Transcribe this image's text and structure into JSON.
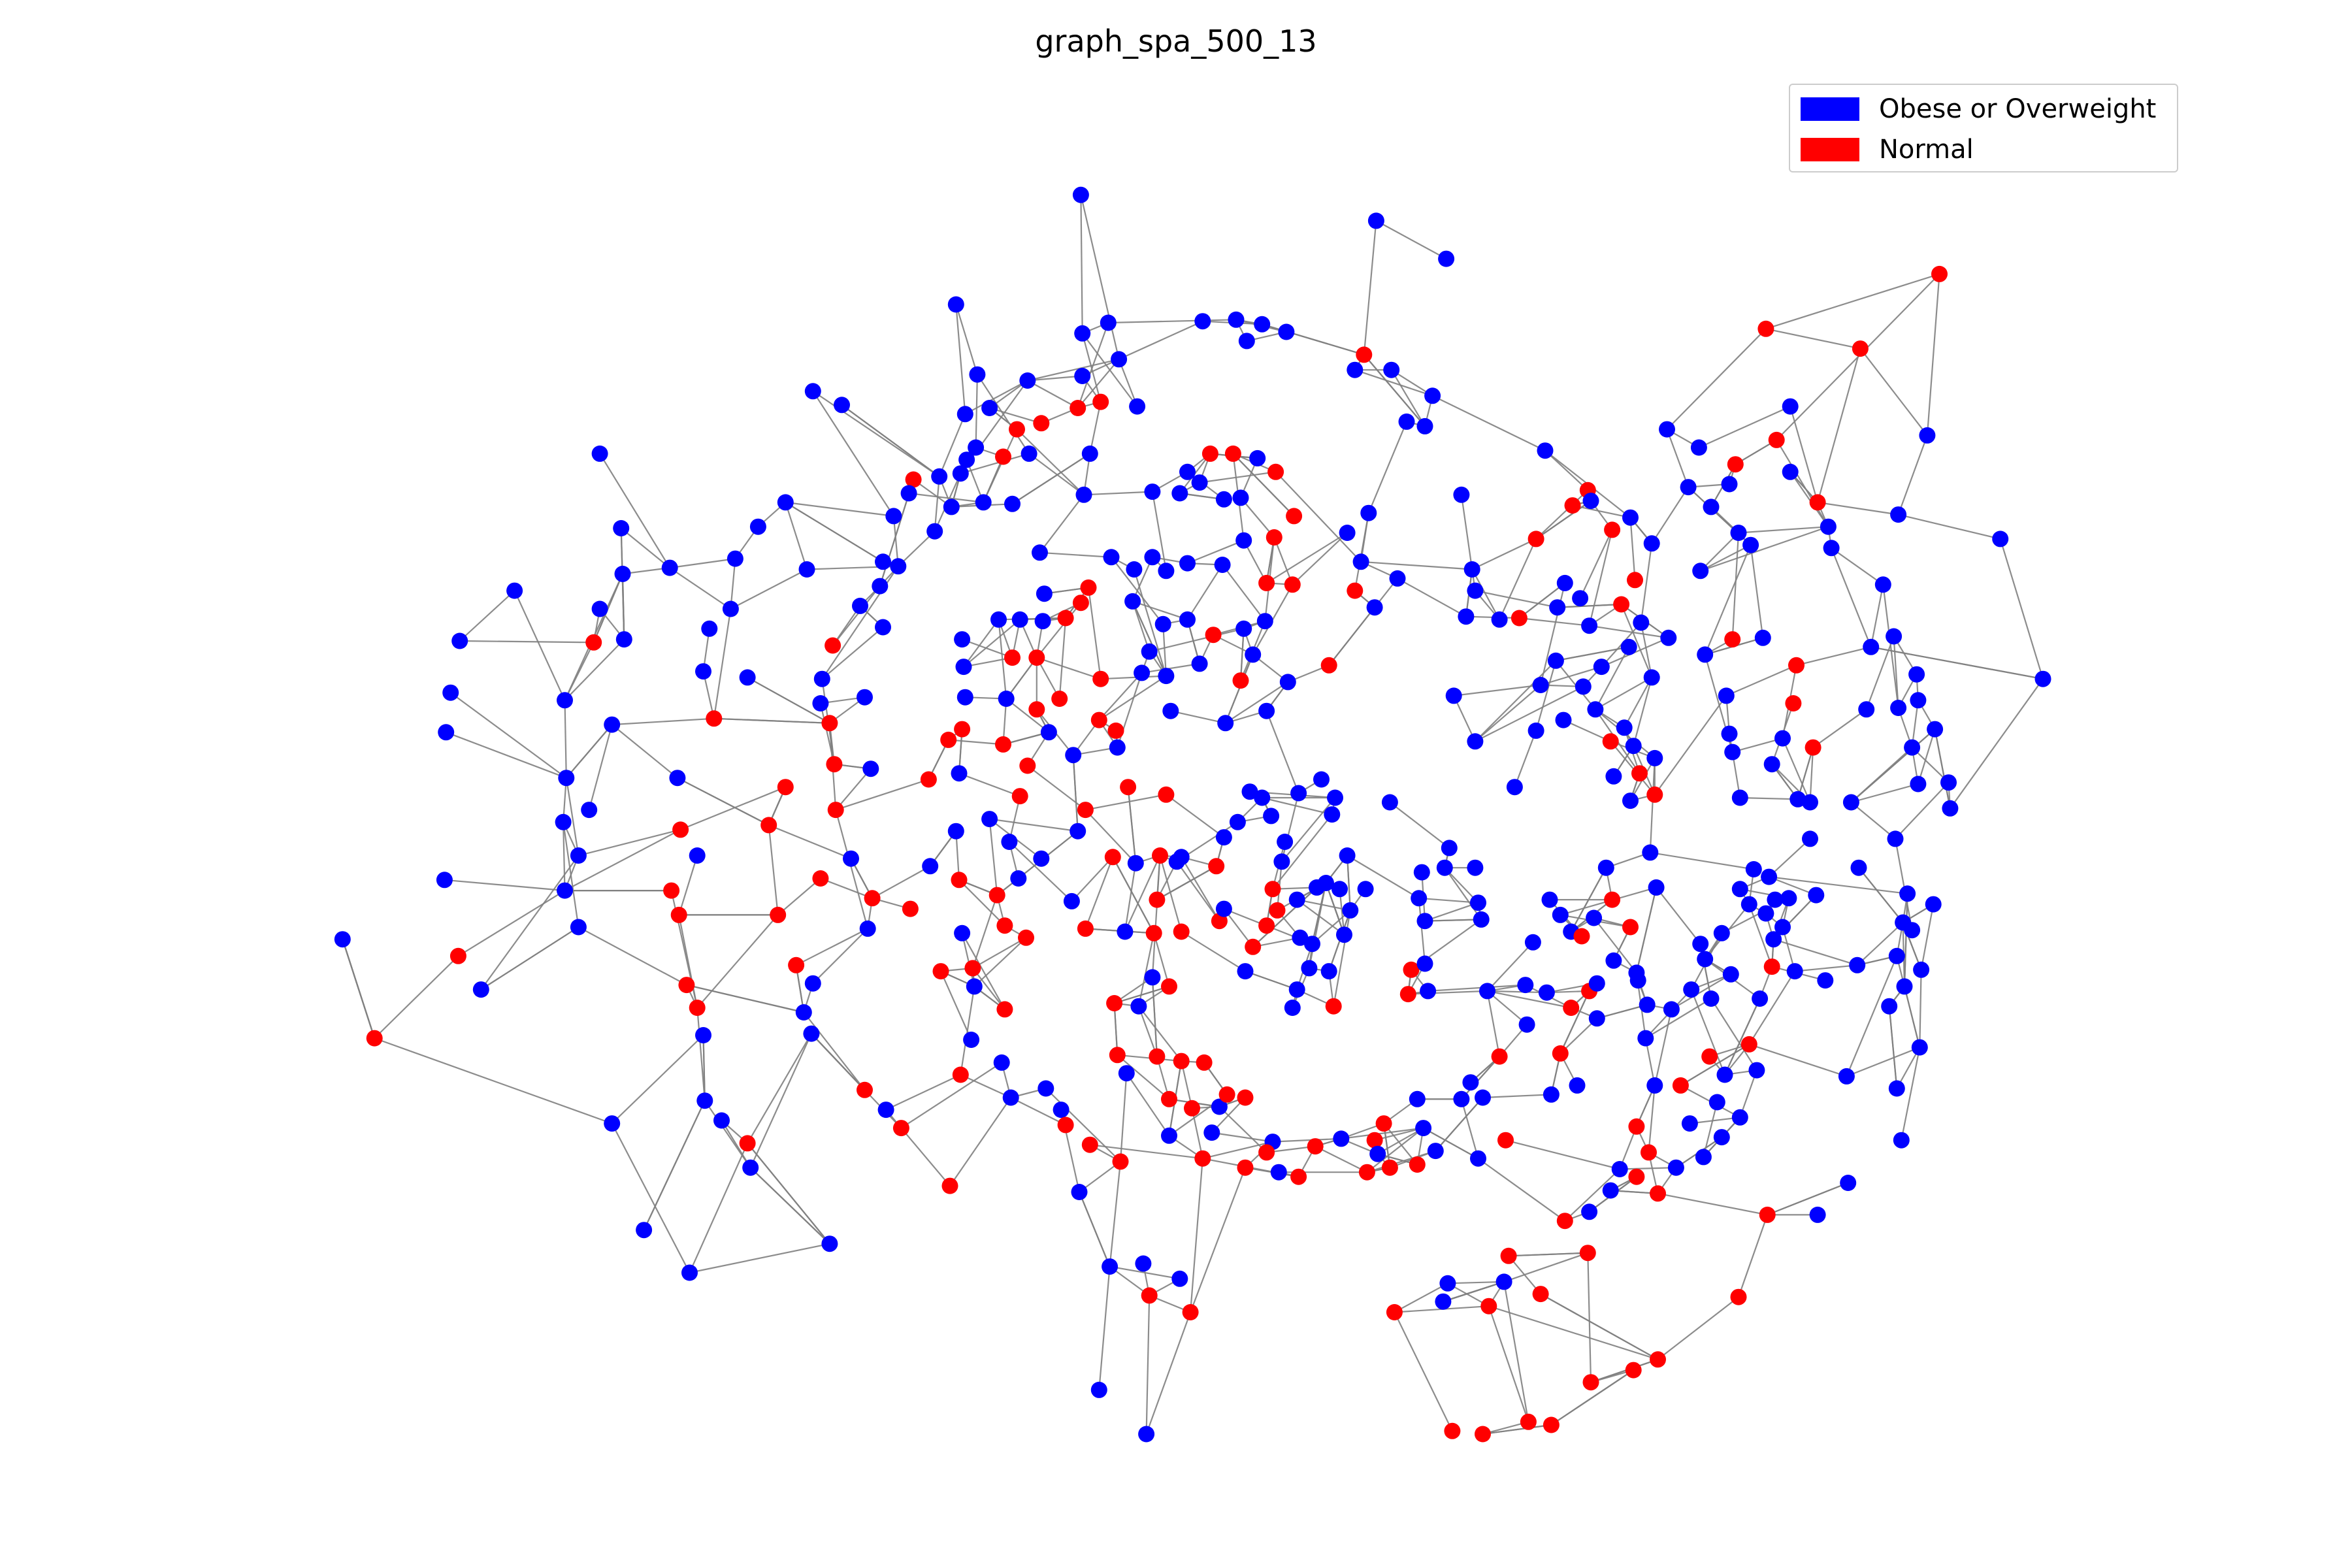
{
  "title": "graph_spa_500_13",
  "legend": {
    "items": [
      {
        "label": "Obese or Overweight",
        "color": "#0000ff"
      },
      {
        "label": "Normal",
        "color": "#ff0000"
      }
    ]
  },
  "colors": {
    "edge": "#808080",
    "obese": "#0000ff",
    "normal": "#ff0000"
  },
  "chart_data": {
    "type": "network",
    "node_classes": [
      "Obese or Overweight",
      "Normal"
    ],
    "axes_visible": false
  }
}
